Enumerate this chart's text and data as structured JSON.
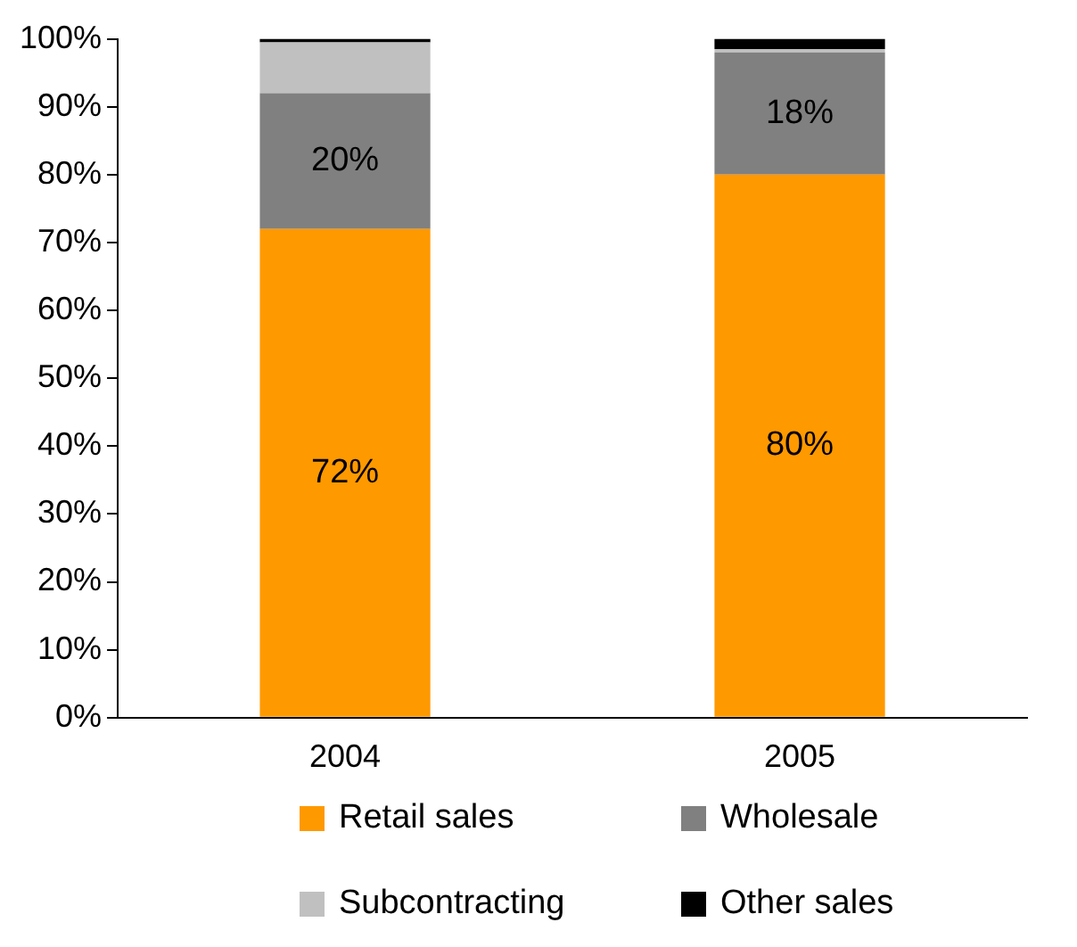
{
  "chart_data": {
    "type": "bar",
    "stacked": true,
    "categories": [
      "2004",
      "2005"
    ],
    "series": [
      {
        "name": "Retail sales",
        "color": "#ff9900",
        "values": [
          72,
          80
        ],
        "value_labels": [
          "72%",
          "80%"
        ]
      },
      {
        "name": "Wholesale",
        "color": "#808080",
        "values": [
          20,
          18
        ],
        "value_labels": [
          "20%",
          "18%"
        ]
      },
      {
        "name": "Subcontracting",
        "color": "#c0c0c0",
        "values": [
          7.5,
          0.5
        ]
      },
      {
        "name": "Other sales",
        "color": "#000000",
        "values": [
          0.5,
          1.5
        ]
      }
    ],
    "ylim": [
      0,
      100
    ],
    "yticks": [
      {
        "value": 0,
        "label": "0%"
      },
      {
        "value": 10,
        "label": "10%"
      },
      {
        "value": 20,
        "label": "20%"
      },
      {
        "value": 30,
        "label": "30%"
      },
      {
        "value": 40,
        "label": "40%"
      },
      {
        "value": 50,
        "label": "50%"
      },
      {
        "value": 60,
        "label": "60%"
      },
      {
        "value": 70,
        "label": "70%"
      },
      {
        "value": 80,
        "label": "80%"
      },
      {
        "value": 90,
        "label": "90%"
      },
      {
        "value": 100,
        "label": "100%"
      }
    ],
    "grid": false,
    "legend": "bottom"
  }
}
